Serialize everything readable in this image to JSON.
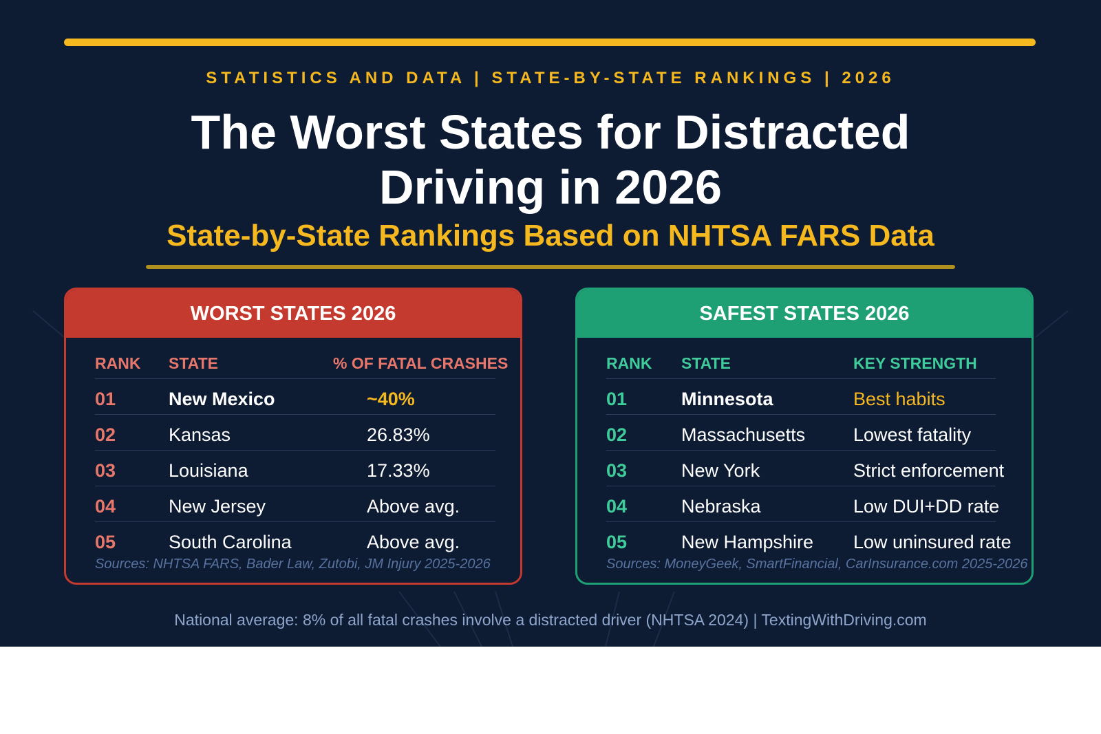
{
  "colors": {
    "background": "#0d1b33",
    "accent_gold": "#f5b81e",
    "worst_red": "#c53a2e",
    "safe_green": "#1fa074"
  },
  "kicker": "STATISTICS AND DATA | STATE-BY-STATE RANKINGS | 2026",
  "title_line1": "The Worst States for Distracted",
  "title_line2": "Driving in 2026",
  "subtitle": "State-by-State Rankings Based on NHTSA FARS Data",
  "worst": {
    "heading": "WORST STATES 2026",
    "columns": [
      "RANK",
      "STATE",
      "% OF FATAL CRASHES"
    ],
    "rows": [
      {
        "rank": "01",
        "state": "New Mexico",
        "value": "~40%"
      },
      {
        "rank": "02",
        "state": "Kansas",
        "value": "26.83%"
      },
      {
        "rank": "03",
        "state": "Louisiana",
        "value": "17.33%"
      },
      {
        "rank": "04",
        "state": "New Jersey",
        "value": "Above avg."
      },
      {
        "rank": "05",
        "state": "South Carolina",
        "value": "Above avg."
      }
    ],
    "source": "Sources: NHTSA FARS, Bader Law, Zutobi, JM Injury 2025-2026"
  },
  "safest": {
    "heading": "SAFEST STATES 2026",
    "columns": [
      "RANK",
      "STATE",
      "KEY STRENGTH"
    ],
    "rows": [
      {
        "rank": "01",
        "state": "Minnesota",
        "value": "Best habits"
      },
      {
        "rank": "02",
        "state": "Massachusetts",
        "value": "Lowest fatality"
      },
      {
        "rank": "03",
        "state": "New York",
        "value": "Strict enforcement"
      },
      {
        "rank": "04",
        "state": "Nebraska",
        "value": "Low DUI+DD rate"
      },
      {
        "rank": "05",
        "state": "New Hampshire",
        "value": "Low uninsured rate"
      }
    ],
    "source": "Sources: MoneyGeek, SmartFinancial, CarInsurance.com 2025-2026"
  },
  "footer": "National average: 8% of all fatal crashes involve a distracted driver (NHTSA 2024) | TextingWithDriving.com"
}
